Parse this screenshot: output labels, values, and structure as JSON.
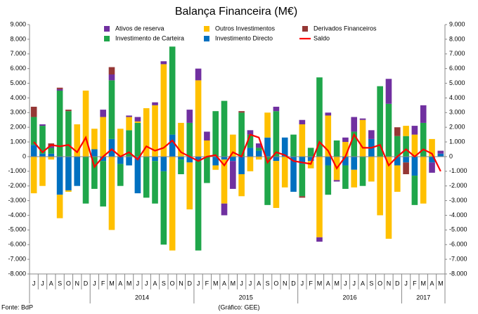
{
  "chart_data": {
    "type": "bar",
    "stacked": true,
    "title": "Balança Financeira (M€)",
    "source": "Fonte: BdP",
    "credit": "(Gráfico: GEE)",
    "categories": [
      "J",
      "J",
      "A",
      "S",
      "O",
      "N",
      "D",
      "J",
      "F",
      "M",
      "A",
      "M",
      "J",
      "J",
      "A",
      "S",
      "O",
      "N",
      "D",
      "J",
      "F",
      "M",
      "A",
      "M",
      "J",
      "J",
      "A",
      "S",
      "O",
      "N",
      "D",
      "J",
      "F",
      "M",
      "A",
      "M",
      "J",
      "J",
      "A",
      "S",
      "O",
      "N",
      "D",
      "J",
      "F",
      "M",
      "A",
      "M"
    ],
    "year_groups": [
      {
        "label": "2014",
        "first": 7,
        "count": 12
      },
      {
        "label": "2015",
        "first": 19,
        "count": 12
      },
      {
        "label": "2016",
        "first": 31,
        "count": 12
      },
      {
        "label": "2017",
        "first": 43,
        "count": 5
      }
    ],
    "series": [
      {
        "name": "Ativos de reserva",
        "type": "bar",
        "color": "#7030a0",
        "values": [
          0,
          100,
          100,
          100,
          0,
          0,
          0,
          0,
          500,
          400,
          0,
          100,
          300,
          0,
          200,
          200,
          0,
          0,
          900,
          800,
          600,
          0,
          -800,
          -1900,
          0,
          300,
          300,
          0,
          300,
          0,
          0,
          300,
          0,
          -300,
          200,
          -100,
          300,
          1000,
          100,
          600,
          0,
          1700,
          0,
          0,
          600,
          1200,
          -700,
          200
        ]
      },
      {
        "name": "Outros Investimentos",
        "type": "bar",
        "color": "#ffc000",
        "values": [
          -2500,
          -2000,
          -200,
          -1600,
          -100,
          2200,
          4500,
          1400,
          2700,
          -5000,
          1900,
          900,
          100,
          3300,
          3500,
          6300,
          -6400,
          2300,
          -3200,
          5200,
          1100,
          -300,
          -3000,
          1500,
          -1500,
          -1000,
          -200,
          1700,
          -3200,
          -2100,
          0,
          2200,
          -500,
          -5500,
          2800,
          -1600,
          1000,
          -1200,
          2500,
          -1700,
          -4000,
          -5600,
          -1800,
          700,
          1500,
          -3200,
          1200,
          0
        ]
      },
      {
        "name": "Derivados Financeiros",
        "type": "bar",
        "color": "#953735",
        "values": [
          700,
          0,
          200,
          100,
          100,
          0,
          0,
          0,
          0,
          500,
          0,
          0,
          0,
          0,
          0,
          0,
          0,
          0,
          0,
          0,
          0,
          0,
          0,
          0,
          100,
          0,
          0,
          0,
          0,
          0,
          0,
          -100,
          0,
          0,
          0,
          0,
          0,
          0,
          0,
          0,
          0,
          0,
          600,
          -800,
          0,
          0,
          0,
          0
        ]
      },
      {
        "name": "Investimento de Carteira",
        "type": "bar",
        "color": "#1fa64a",
        "values": [
          1900,
          1900,
          400,
          4500,
          3100,
          0,
          -3200,
          -2200,
          -3100,
          4000,
          -1500,
          1800,
          2300,
          -2800,
          -2900,
          -5000,
          6000,
          -1000,
          2300,
          -6100,
          -1800,
          3100,
          3800,
          0,
          3000,
          900,
          200,
          -3300,
          3100,
          0,
          1500,
          -2200,
          600,
          5400,
          -2000,
          1100,
          -1600,
          1700,
          -2000,
          0,
          4800,
          3600,
          1400,
          1400,
          -2000,
          2300,
          0,
          0
        ]
      },
      {
        "name": "Investimento Directo",
        "type": "bar",
        "color": "#0070c0",
        "values": [
          800,
          200,
          200,
          -2600,
          -2300,
          -2000,
          0,
          500,
          -300,
          1200,
          -500,
          -600,
          -2500,
          0,
          -300,
          -1000,
          1500,
          -200,
          -400,
          -300,
          0,
          -600,
          -200,
          -300,
          -1200,
          600,
          400,
          1300,
          -300,
          1300,
          -2400,
          -500,
          -300,
          0,
          -600,
          0,
          -600,
          -900,
          0,
          1200,
          0,
          0,
          -600,
          -400,
          -1300,
          0,
          -400,
          200
        ]
      },
      {
        "name": "Saldo",
        "type": "line",
        "color": "#ff0000",
        "values": [
          1000,
          300,
          800,
          700,
          800,
          300,
          1300,
          -700,
          0,
          500,
          0,
          300,
          -200,
          700,
          400,
          600,
          1100,
          300,
          0,
          -300,
          0,
          100,
          -600,
          300,
          0,
          1500,
          1300,
          -400,
          300,
          100,
          -300,
          -400,
          -500,
          1000,
          400,
          -800,
          0,
          1500,
          600,
          600,
          800,
          -600,
          0,
          500,
          0,
          500,
          200,
          -1000
        ]
      }
    ],
    "ylim": [
      -8000,
      9000
    ],
    "yticks": [
      {
        "value": -8000,
        "label": "-8.000"
      },
      {
        "value": -7000,
        "label": "-7.000"
      },
      {
        "value": -6000,
        "label": "-6.000"
      },
      {
        "value": -5000,
        "label": "-5.000"
      },
      {
        "value": -4000,
        "label": "-4.000"
      },
      {
        "value": -3000,
        "label": "-3.000"
      },
      {
        "value": -2000,
        "label": "-2.000"
      },
      {
        "value": -1000,
        "label": "-1.000"
      },
      0,
      {
        "value": 1000,
        "label": "1.000"
      },
      {
        "value": 2000,
        "label": "2.000"
      },
      {
        "value": 3000,
        "label": "3.000"
      },
      {
        "value": 4000,
        "label": "4.000"
      },
      {
        "value": 5000,
        "label": "5.000"
      },
      {
        "value": 6000,
        "label": "6.000"
      },
      {
        "value": 7000,
        "label": "7.000"
      },
      {
        "value": 8000,
        "label": "8.000"
      },
      {
        "value": 9000,
        "label": "9.000"
      }
    ],
    "mirror_y_axis": true,
    "grid": false
  }
}
